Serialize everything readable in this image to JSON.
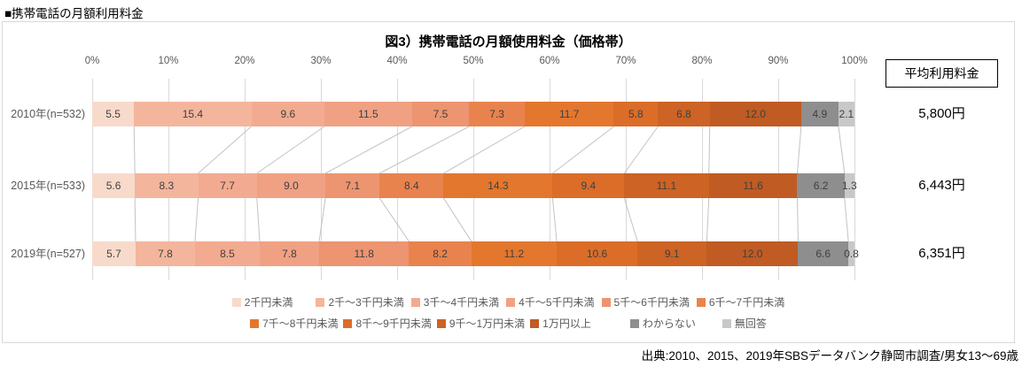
{
  "header": {
    "title": "■携帯電話の月額利用料金"
  },
  "chart": {
    "title": "図3）携帯電話の月額使用料金（価格帯）",
    "avg_box_label": "平均利用料金",
    "source": "出典:2010、2015、2019年SBSデータバンク静岡市調査/男女13～69歳"
  },
  "chart_data": {
    "type": "bar",
    "stacked": true,
    "orientation": "horizontal",
    "title": "図3）携帯電話の月額使用料金（価格帯）",
    "xlabel": "",
    "ylabel": "",
    "xlim": [
      0,
      100
    ],
    "x_ticks": [
      "0%",
      "10%",
      "20%",
      "30%",
      "40%",
      "50%",
      "60%",
      "70%",
      "80%",
      "90%",
      "100%"
    ],
    "grid": true,
    "legend_position": "bottom",
    "categories": [
      "2010年(n=532)",
      "2015年(n=533)",
      "2019年(n=527)"
    ],
    "averages": [
      "5,800円",
      "6,443円",
      "6,351円"
    ],
    "series": [
      {
        "name": "2千円未満",
        "color": "#F8DACB",
        "values": [
          5.5,
          5.6,
          5.7
        ]
      },
      {
        "name": "2千～3千円未満",
        "color": "#F4B59D",
        "values": [
          15.4,
          8.3,
          7.8
        ]
      },
      {
        "name": "3千～4千円未満",
        "color": "#F2AB90",
        "values": [
          9.6,
          7.7,
          8.5
        ]
      },
      {
        "name": "4千～5千円未満",
        "color": "#F0A184",
        "values": [
          11.5,
          9.0,
          7.8
        ]
      },
      {
        "name": "5千～6千円未満",
        "color": "#ED9470",
        "values": [
          7.5,
          7.1,
          11.8
        ]
      },
      {
        "name": "6千～7千円未満",
        "color": "#E9834D",
        "values": [
          7.3,
          8.4,
          8.2
        ]
      },
      {
        "name": "7千～8千円未満",
        "color": "#E3772E",
        "values": [
          11.7,
          14.3,
          11.2
        ]
      },
      {
        "name": "8千～9千円未満",
        "color": "#DB6D28",
        "values": [
          5.8,
          9.4,
          10.6
        ]
      },
      {
        "name": "9千～1万円未満",
        "color": "#CD6324",
        "values": [
          6.8,
          11.1,
          9.1
        ]
      },
      {
        "name": "1万円以上",
        "color": "#C05B23",
        "values": [
          12.0,
          11.6,
          12.0
        ]
      },
      {
        "name": "わからない",
        "color": "#8E8E8E",
        "values": [
          4.9,
          6.2,
          6.6
        ]
      },
      {
        "name": "無回答",
        "color": "#C8C8C8",
        "values": [
          2.1,
          1.3,
          0.8
        ]
      }
    ]
  }
}
